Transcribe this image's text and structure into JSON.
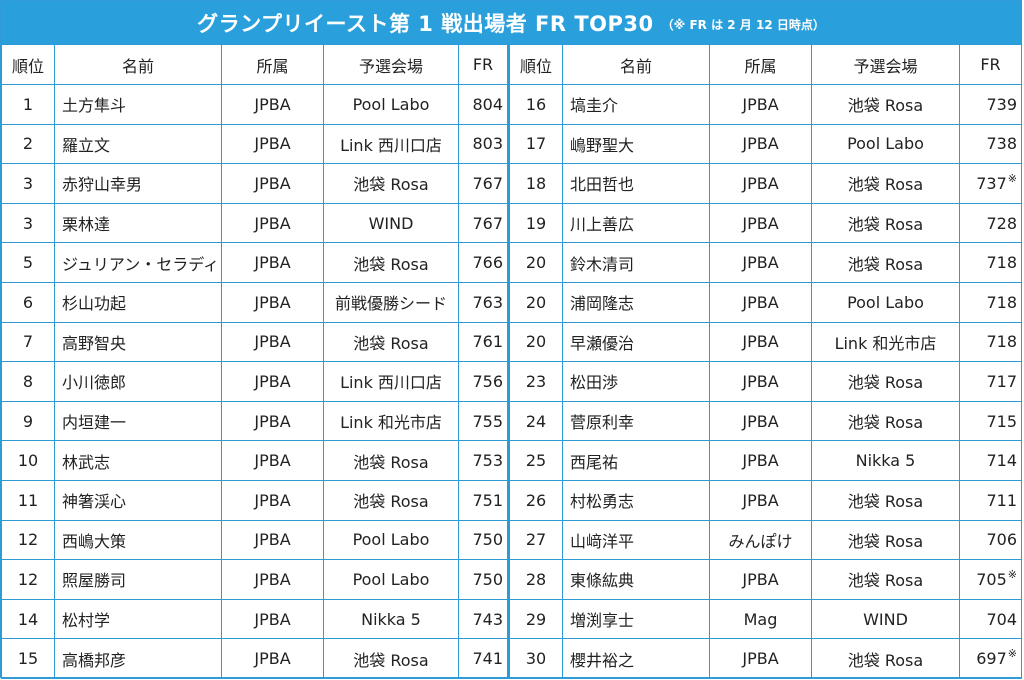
{
  "title": "グランプリイースト第 1 戦出場者 FR TOP30",
  "note": "（※ FR は 2 月 12 日時点）",
  "headers": {
    "rank": "順位",
    "name": "名前",
    "affiliation": "所属",
    "venue": "予選会場",
    "fr": "FR"
  },
  "colors": {
    "header_bg": "#29a0dc",
    "highlight_bg": "#d8ecf8",
    "border": "#2e9bd6"
  },
  "left": [
    {
      "rank": "1",
      "name": "土方隼斗",
      "affiliation": "JPBA",
      "venue": "Pool Labo",
      "fr": "804",
      "mark": "",
      "highlight": true
    },
    {
      "rank": "2",
      "name": "羅立文",
      "affiliation": "JPBA",
      "venue": "Link 西川口店",
      "fr": "803",
      "mark": "",
      "highlight": true
    },
    {
      "rank": "3",
      "name": "赤狩山幸男",
      "affiliation": "JPBA",
      "venue": "池袋 Rosa",
      "fr": "767",
      "mark": ""
    },
    {
      "rank": "3",
      "name": "栗林達",
      "affiliation": "JPBA",
      "venue": "WIND",
      "fr": "767",
      "mark": ""
    },
    {
      "rank": "5",
      "name": "ジュリアン・セラディラ",
      "affiliation": "JPBA",
      "venue": "池袋 Rosa",
      "fr": "766",
      "mark": ""
    },
    {
      "rank": "6",
      "name": "杉山功起",
      "affiliation": "JPBA",
      "venue": "前戦優勝シード",
      "fr": "763",
      "mark": ""
    },
    {
      "rank": "7",
      "name": "高野智央",
      "affiliation": "JPBA",
      "venue": "池袋 Rosa",
      "fr": "761",
      "mark": ""
    },
    {
      "rank": "8",
      "name": "小川徳郎",
      "affiliation": "JPBA",
      "venue": "Link 西川口店",
      "fr": "756",
      "mark": ""
    },
    {
      "rank": "9",
      "name": "内垣建一",
      "affiliation": "JPBA",
      "venue": "Link 和光市店",
      "fr": "755",
      "mark": ""
    },
    {
      "rank": "10",
      "name": "林武志",
      "affiliation": "JPBA",
      "venue": "池袋 Rosa",
      "fr": "753",
      "mark": ""
    },
    {
      "rank": "11",
      "name": "神箸渓心",
      "affiliation": "JPBA",
      "venue": "池袋 Rosa",
      "fr": "751",
      "mark": ""
    },
    {
      "rank": "12",
      "name": "西嶋大策",
      "affiliation": "JPBA",
      "venue": "Pool Labo",
      "fr": "750",
      "mark": ""
    },
    {
      "rank": "12",
      "name": "照屋勝司",
      "affiliation": "JPBA",
      "venue": "Pool Labo",
      "fr": "750",
      "mark": ""
    },
    {
      "rank": "14",
      "name": "松村学",
      "affiliation": "JPBA",
      "venue": "Nikka 5",
      "fr": "743",
      "mark": ""
    },
    {
      "rank": "15",
      "name": "高橋邦彦",
      "affiliation": "JPBA",
      "venue": "池袋 Rosa",
      "fr": "741",
      "mark": ""
    }
  ],
  "right": [
    {
      "rank": "16",
      "name": "塙圭介",
      "affiliation": "JPBA",
      "venue": "池袋 Rosa",
      "fr": "739",
      "mark": ""
    },
    {
      "rank": "17",
      "name": "嶋野聖大",
      "affiliation": "JPBA",
      "venue": "Pool Labo",
      "fr": "738",
      "mark": ""
    },
    {
      "rank": "18",
      "name": "北田哲也",
      "affiliation": "JPBA",
      "venue": "池袋 Rosa",
      "fr": "737",
      "mark": "※"
    },
    {
      "rank": "19",
      "name": "川上善広",
      "affiliation": "JPBA",
      "venue": "池袋 Rosa",
      "fr": "728",
      "mark": ""
    },
    {
      "rank": "20",
      "name": "鈴木清司",
      "affiliation": "JPBA",
      "venue": "池袋 Rosa",
      "fr": "718",
      "mark": ""
    },
    {
      "rank": "20",
      "name": "浦岡隆志",
      "affiliation": "JPBA",
      "venue": "Pool Labo",
      "fr": "718",
      "mark": ""
    },
    {
      "rank": "20",
      "name": "早瀬優治",
      "affiliation": "JPBA",
      "venue": "Link 和光市店",
      "fr": "718",
      "mark": ""
    },
    {
      "rank": "23",
      "name": "松田渉",
      "affiliation": "JPBA",
      "venue": "池袋 Rosa",
      "fr": "717",
      "mark": ""
    },
    {
      "rank": "24",
      "name": "菅原利幸",
      "affiliation": "JPBA",
      "venue": "池袋 Rosa",
      "fr": "715",
      "mark": ""
    },
    {
      "rank": "25",
      "name": "西尾祐",
      "affiliation": "JPBA",
      "venue": "Nikka 5",
      "fr": "714",
      "mark": ""
    },
    {
      "rank": "26",
      "name": "村松勇志",
      "affiliation": "JPBA",
      "venue": "池袋 Rosa",
      "fr": "711",
      "mark": ""
    },
    {
      "rank": "27",
      "name": "山﨑洋平",
      "affiliation": "みんぽけ",
      "venue": "池袋 Rosa",
      "fr": "706",
      "mark": ""
    },
    {
      "rank": "28",
      "name": "東條紘典",
      "affiliation": "JPBA",
      "venue": "池袋 Rosa",
      "fr": "705",
      "mark": "※"
    },
    {
      "rank": "29",
      "name": "増渕享士",
      "affiliation": "Mag",
      "venue": "WIND",
      "fr": "704",
      "mark": ""
    },
    {
      "rank": "30",
      "name": "櫻井裕之",
      "affiliation": "JPBA",
      "venue": "池袋 Rosa",
      "fr": "697",
      "mark": "※"
    }
  ]
}
